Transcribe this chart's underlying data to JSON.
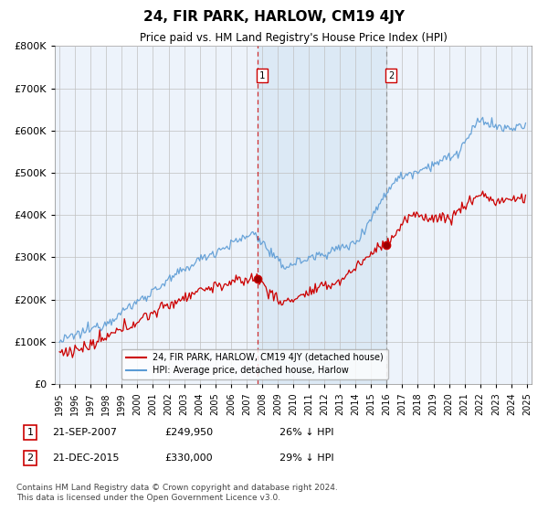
{
  "title": "24, FIR PARK, HARLOW, CM19 4JY",
  "subtitle": "Price paid vs. HM Land Registry's House Price Index (HPI)",
  "footer": "Contains HM Land Registry data © Crown copyright and database right 2024.\nThis data is licensed under the Open Government Licence v3.0.",
  "legend_line1": "24, FIR PARK, HARLOW, CM19 4JY (detached house)",
  "legend_line2": "HPI: Average price, detached house, Harlow",
  "ann1_date": "21-SEP-2007",
  "ann1_price": "£249,950",
  "ann1_pct": "26% ↓ HPI",
  "ann2_date": "21-DEC-2015",
  "ann2_price": "£330,000",
  "ann2_pct": "29% ↓ HPI",
  "transaction1_x": 2007.72,
  "transaction1_y": 249950,
  "transaction2_x": 2015.97,
  "transaction2_y": 330000,
  "red_color": "#cc0000",
  "blue_color": "#5b9bd5",
  "shade_color": "#dce9f5",
  "background_color": "#ffffff",
  "plot_bg_color": "#edf3fb",
  "grid_color": "#c0c0c0",
  "ylim": [
    0,
    800000
  ],
  "xlim_start": 1994.7,
  "xlim_end": 2025.3
}
